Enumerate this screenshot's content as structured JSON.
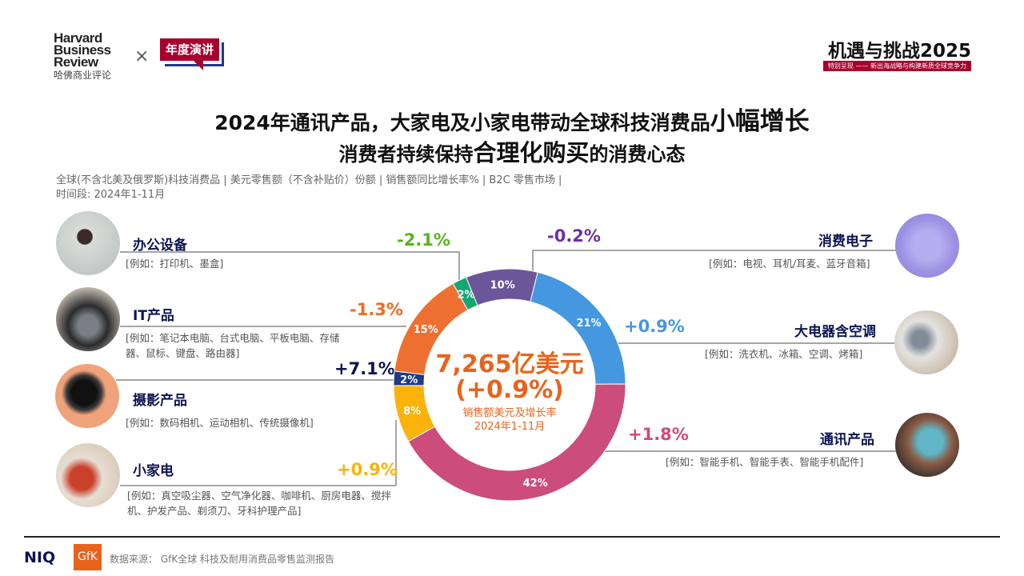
{
  "header": {
    "logo_hbr": [
      "Harvard",
      "Business",
      "Review"
    ],
    "logo_hbr_cn": "哈佛商业评论",
    "times": "×",
    "badge": "年度演讲",
    "event_title": "机遇与挑战2025",
    "event_sub": "特别呈现 —— 新出海战略与构建新质全球竞争力"
  },
  "title": {
    "line1_a": "2024年通讯产品，大家电及小家电带动全球科技消费品",
    "line1_b": "小幅增长",
    "line2_a": "消费者持续保持",
    "line2_b": "合理化购买",
    "line2_c": "的消费心态"
  },
  "meta": {
    "line1": "全球(不含北美及俄罗斯)科技消费品 | 美元零售额（不含补贴价）份额 | 销售额同比增长率% | B2C 零售市场 |",
    "line2": "时间段: 2024年1-11月"
  },
  "center": {
    "total": "7,265亿美元",
    "growth": "(+0.9%)",
    "label": "销售额美元及增长率",
    "period": "2024年1-11月"
  },
  "categories": [
    {
      "name": "办公设备",
      "examples": "[例如：打印机、墨盒]",
      "growth": "-2.1%",
      "color": "#17a673",
      "growth_color": "#5ab31d"
    },
    {
      "name": "IT产品",
      "examples": "[例如：笔记本电脑、台式电脑、平板电脑、存储器、鼠标、键盘、路由器]",
      "growth": "-1.3%",
      "color": "#ee7031",
      "growth_color": "#ee6b25"
    },
    {
      "name": "摄影产品",
      "examples": "[例如：数码相机、运动相机、传统摄像机]",
      "growth": "+7.1%",
      "color": "#1f3a84",
      "growth_color": "#0d1452"
    },
    {
      "name": "小家电",
      "examples": "[例如：真空吸尘器、空气净化器、咖啡机、厨房电器、搅拌机、护发产品、剃须刀、牙科护理产品]",
      "growth": "+0.9%",
      "color": "#fbb20b",
      "growth_color": "#fbb20b"
    },
    {
      "name": "消费电子",
      "examples": "[例如：电视、耳机/耳麦、蓝牙音箱]",
      "growth": "-0.2%",
      "color": "#6a5699",
      "growth_color": "#7030a0"
    },
    {
      "name": "大电器含空调",
      "examples": "[例如：洗衣机、冰箱、空调、烤箱]",
      "growth": "+0.9%",
      "color": "#4597e0",
      "growth_color": "#4597e0"
    },
    {
      "name": "通讯产品",
      "examples": "[例如：智能手机、智能手表、智能手机配件]",
      "growth": "+1.8%",
      "color": "#cc4c7c",
      "growth_color": "#cc4c7c"
    }
  ],
  "chart_data": {
    "type": "pie",
    "donut": true,
    "title": "7,265亿美元 (+0.9%)",
    "slices": [
      {
        "label": "大电器含空调",
        "value": 21,
        "text": "21%",
        "color": "#4597e0"
      },
      {
        "label": "通讯产品",
        "value": 42,
        "text": "42%",
        "color": "#cc4c7c"
      },
      {
        "label": "小家电",
        "value": 8,
        "text": "8%",
        "color": "#fbb20b"
      },
      {
        "label": "摄影产品",
        "value": 2,
        "text": "2%",
        "color": "#1f3a84"
      },
      {
        "label": "IT产品",
        "value": 15,
        "text": "15%",
        "color": "#ee7031"
      },
      {
        "label": "办公设备",
        "value": 2,
        "text": "2%",
        "color": "#17a673"
      },
      {
        "label": "消费电子",
        "value": 10,
        "text": "10%",
        "color": "#6a5699"
      }
    ]
  },
  "footer": {
    "niq": "NIQ",
    "gfk": "GfK",
    "source": "数据来源：  GfK全球 科技及耐用消费品零售监测报告"
  }
}
